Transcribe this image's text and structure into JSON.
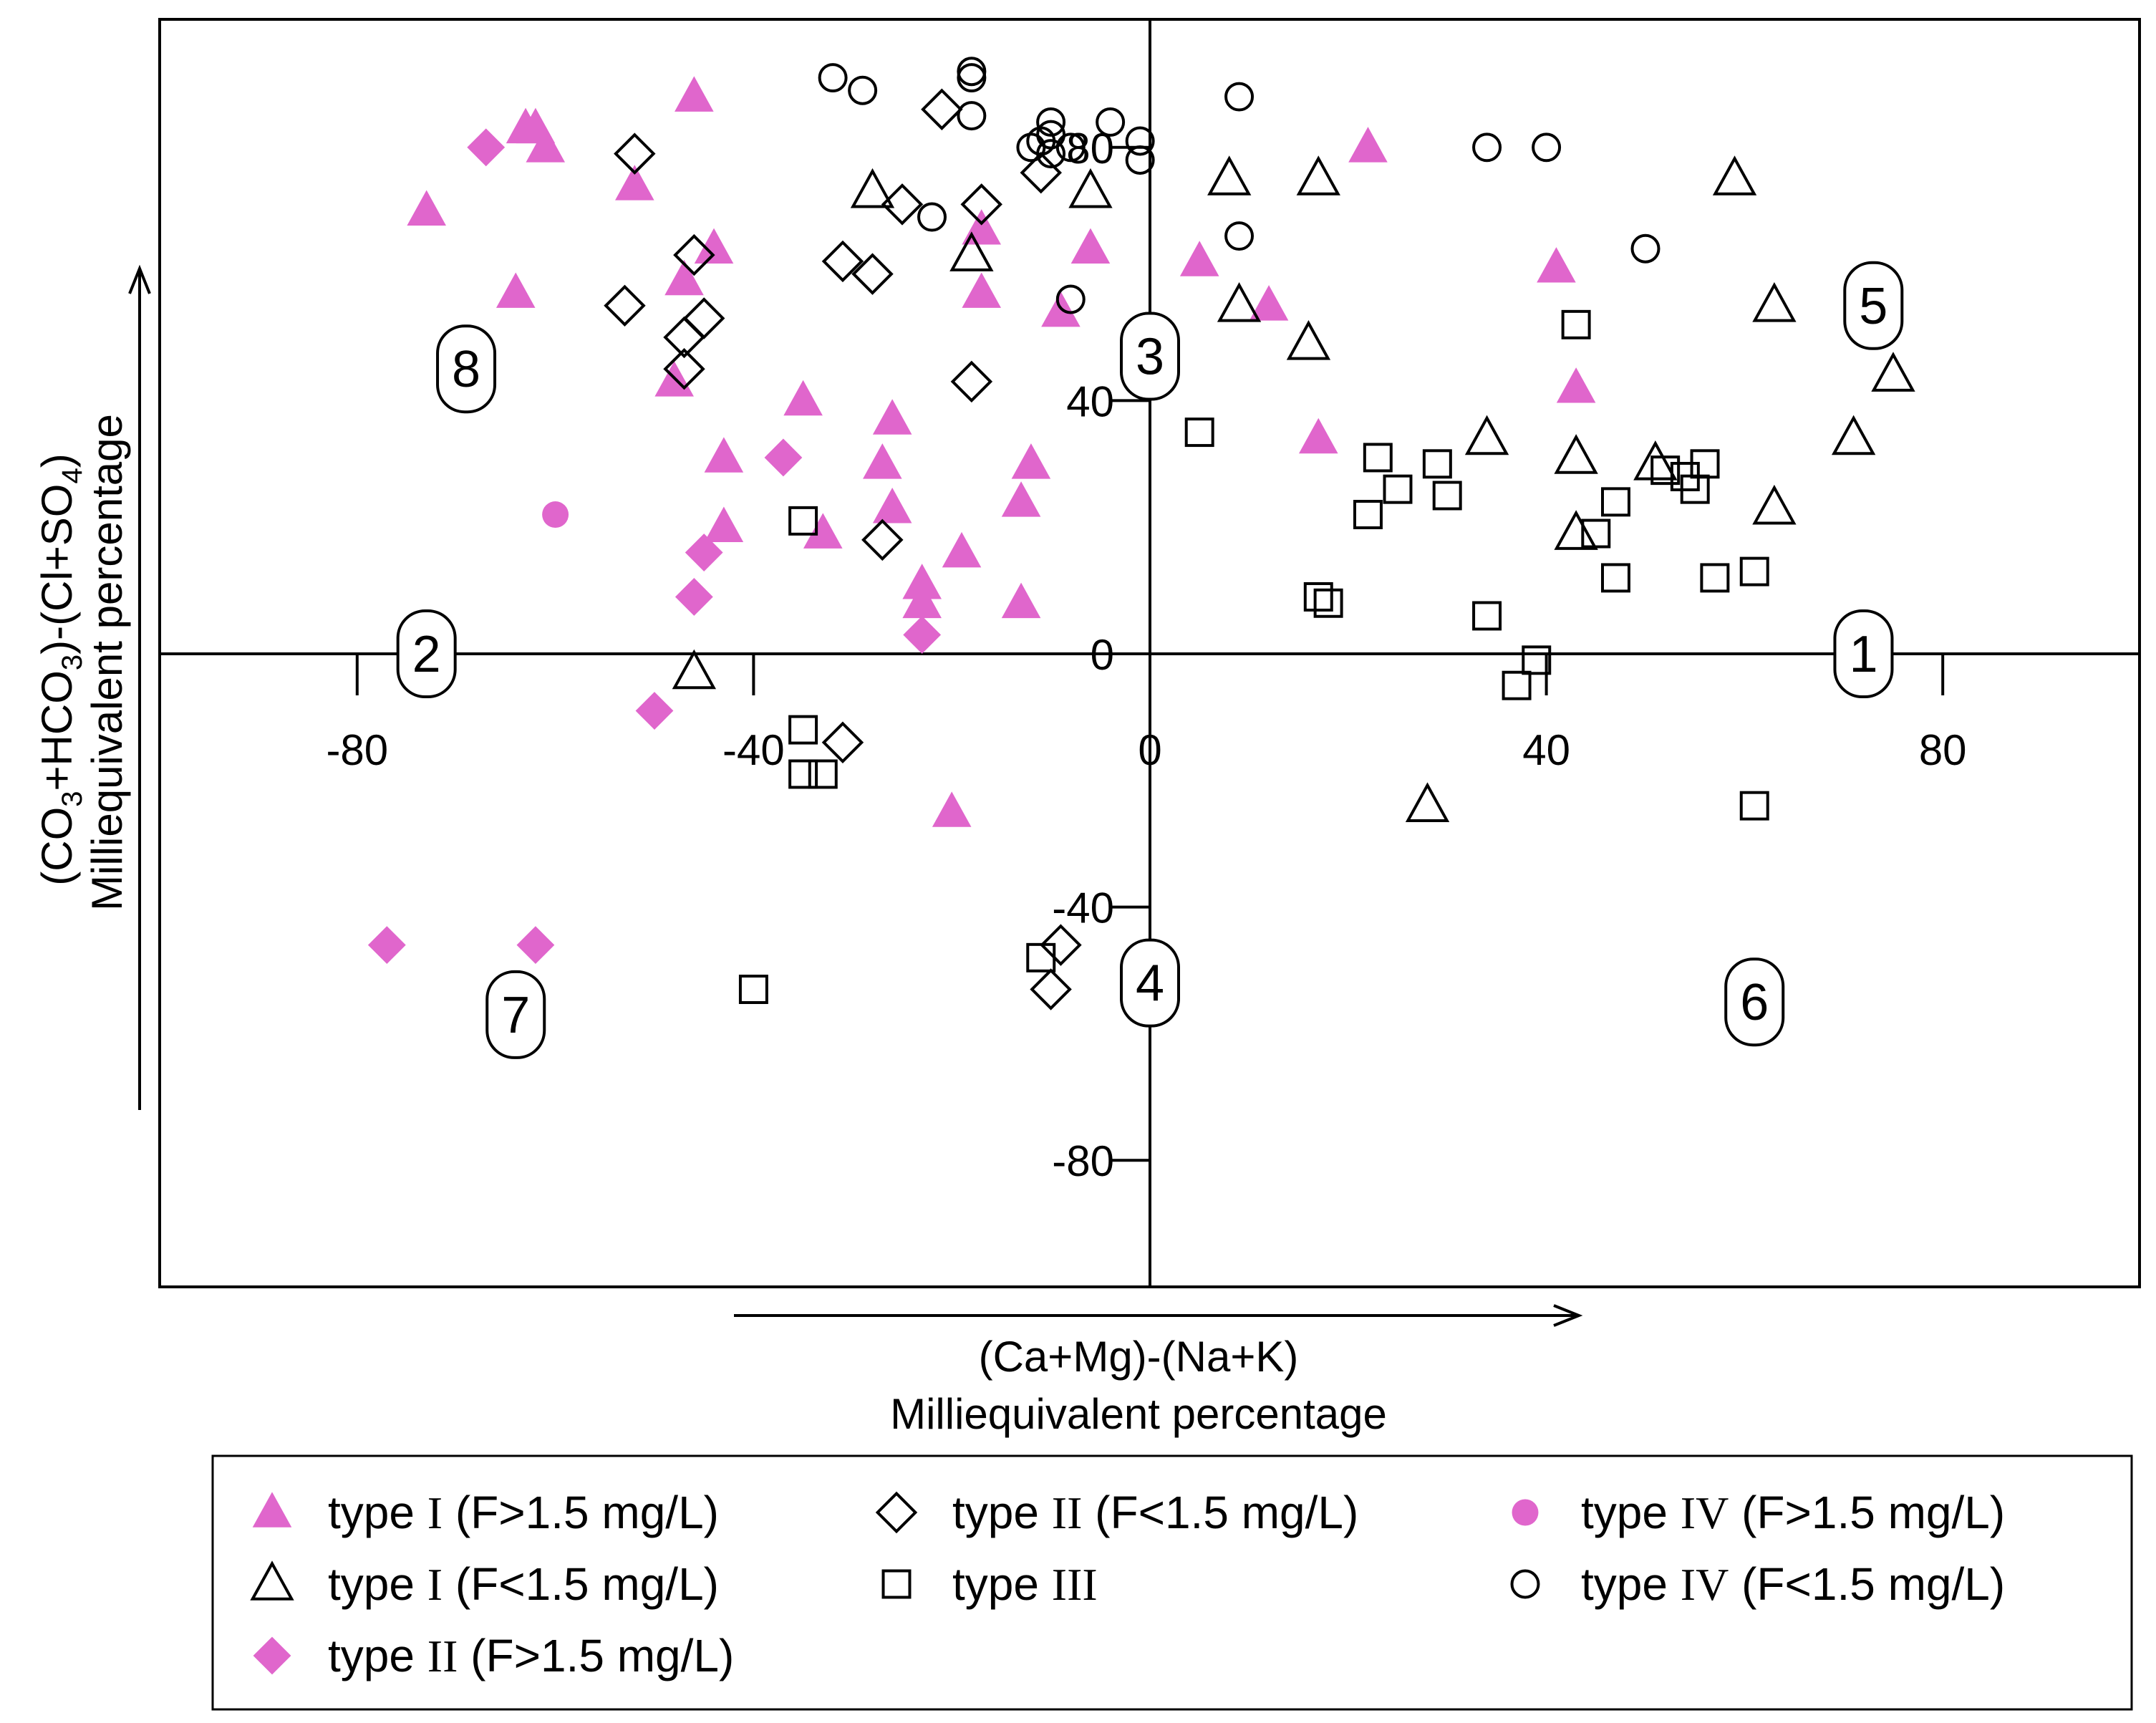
{
  "chart_data": {
    "type": "scatter",
    "xlabel": [
      "(Ca+Mg)-(Na+K)",
      "Milliequivalent percentage"
    ],
    "ylabel": [
      "(CO3+HCO3)-(Cl+SO4)",
      "Milliequivalent percentage"
    ],
    "ylabel_parts": {
      "l1a": "(CO",
      "l1b": "3",
      "l1c": "+HCO",
      "l1d": "3",
      "l1e": ")-(Cl+SO",
      "l1f": "4",
      "l1g": ")"
    },
    "xlim": [
      -100,
      100
    ],
    "ylim": [
      -100,
      100
    ],
    "x_ticks": [
      -80,
      -40,
      0,
      40,
      80
    ],
    "y_ticks": [
      -80,
      -40,
      0,
      40,
      80
    ],
    "x_tick_labels": [
      "-80",
      "-40",
      "0",
      "40",
      "80"
    ],
    "y_tick_labels": [
      "-80",
      "-40",
      "0",
      "40",
      "80"
    ],
    "fields": [
      {
        "label": "1",
        "x": 72,
        "y": 0
      },
      {
        "label": "2",
        "x": -73,
        "y": 0
      },
      {
        "label": "3",
        "x": 0,
        "y": 47
      },
      {
        "label": "4",
        "x": 0,
        "y": -52
      },
      {
        "label": "5",
        "x": 73,
        "y": 55
      },
      {
        "label": "6",
        "x": 61,
        "y": -55
      },
      {
        "label": "7",
        "x": -64,
        "y": -57
      },
      {
        "label": "8",
        "x": -69,
        "y": 45
      }
    ],
    "series": [
      {
        "name_a": "type ",
        "name_b": "I",
        "name_c": " (F>1.5 mg/L)",
        "marker": "triangle",
        "filled": true,
        "color": "#e066cc",
        "points": [
          [
            -46,
            88
          ],
          [
            -63,
            83
          ],
          [
            -62,
            83
          ],
          [
            -61,
            80
          ],
          [
            -52,
            74
          ],
          [
            -73,
            70
          ],
          [
            -44,
            64
          ],
          [
            -64,
            57
          ],
          [
            -47,
            59
          ],
          [
            -48,
            43
          ],
          [
            -35,
            40
          ],
          [
            -26,
            37
          ],
          [
            -43,
            31
          ],
          [
            -27,
            30
          ],
          [
            -12,
            30
          ],
          [
            -26,
            23
          ],
          [
            -13,
            24
          ],
          [
            -43,
            20
          ],
          [
            -33,
            19
          ],
          [
            -19,
            16
          ],
          [
            -23,
            11
          ],
          [
            -13,
            8
          ],
          [
            -23,
            8
          ],
          [
            -17,
            67
          ],
          [
            -6,
            64
          ],
          [
            -17,
            57
          ],
          [
            -9,
            54
          ],
          [
            5,
            62
          ],
          [
            12,
            55
          ],
          [
            22,
            80
          ],
          [
            41,
            61
          ],
          [
            43,
            42
          ],
          [
            17,
            34
          ],
          [
            -20,
            -25
          ]
        ]
      },
      {
        "name_a": "type ",
        "name_b": "I",
        "name_c": " (F<1.5 mg/L)",
        "marker": "triangle",
        "filled": false,
        "color": "#000000",
        "points": [
          [
            -28,
            73
          ],
          [
            -6,
            73
          ],
          [
            -18,
            63
          ],
          [
            8,
            75
          ],
          [
            17,
            75
          ],
          [
            59,
            75
          ],
          [
            9,
            55
          ],
          [
            16,
            49
          ],
          [
            63,
            55
          ],
          [
            75,
            44
          ],
          [
            34,
            34
          ],
          [
            43,
            31
          ],
          [
            71,
            34
          ],
          [
            51,
            30
          ],
          [
            63,
            23
          ],
          [
            43,
            19
          ],
          [
            -46,
            -3
          ],
          [
            28,
            -24
          ]
        ]
      },
      {
        "name_a": "type ",
        "name_b": "II",
        "name_c": " (F>1.5 mg/L)",
        "marker": "diamond",
        "filled": true,
        "color": "#e066cc",
        "points": [
          [
            -67,
            80
          ],
          [
            -37,
            31
          ],
          [
            -45,
            16
          ],
          [
            -46,
            9
          ],
          [
            -23,
            3
          ],
          [
            -50,
            -9
          ],
          [
            -77,
            -46
          ],
          [
            -62,
            -46
          ]
        ]
      },
      {
        "name_a": "type ",
        "name_b": "II",
        "name_c": " (F<1.5 mg/L)",
        "marker": "diamond",
        "filled": false,
        "color": "#000000",
        "points": [
          [
            -21,
            86
          ],
          [
            -52,
            79
          ],
          [
            -25,
            71
          ],
          [
            -17,
            71
          ],
          [
            -11,
            76
          ],
          [
            -46,
            63
          ],
          [
            -31,
            62
          ],
          [
            -28,
            60
          ],
          [
            -53,
            55
          ],
          [
            -45,
            53
          ],
          [
            -47,
            50
          ],
          [
            -47,
            45
          ],
          [
            -18,
            43
          ],
          [
            -27,
            18
          ],
          [
            -31,
            -14
          ],
          [
            -9,
            -46
          ],
          [
            -10,
            -53
          ]
        ]
      },
      {
        "name_a": "type ",
        "name_b": "III",
        "name_c": "",
        "marker": "square",
        "filled": false,
        "color": "#000000",
        "points": [
          [
            43,
            52
          ],
          [
            5,
            35
          ],
          [
            23,
            31
          ],
          [
            29,
            30
          ],
          [
            25,
            26
          ],
          [
            30,
            25
          ],
          [
            22,
            22
          ],
          [
            52,
            29
          ],
          [
            54,
            28
          ],
          [
            56,
            30
          ],
          [
            55,
            26
          ],
          [
            47,
            24
          ],
          [
            45,
            19
          ],
          [
            47,
            12
          ],
          [
            57,
            12
          ],
          [
            61,
            13
          ],
          [
            17,
            9
          ],
          [
            18,
            8
          ],
          [
            34,
            6
          ],
          [
            39,
            -1
          ],
          [
            37,
            -5
          ],
          [
            -35,
            21
          ],
          [
            -35,
            -12
          ],
          [
            -35,
            -19
          ],
          [
            -33,
            -19
          ],
          [
            61,
            -24
          ],
          [
            -11,
            -48
          ],
          [
            -40,
            -53
          ]
        ]
      },
      {
        "name_a": "type ",
        "name_b": "IV",
        "name_c": " (F>1.5 mg/L)",
        "marker": "circle",
        "filled": true,
        "color": "#e066cc",
        "points": [
          [
            -60,
            22
          ]
        ]
      },
      {
        "name_a": "type ",
        "name_b": "IV",
        "name_c": " (F<1.5 mg/L)",
        "marker": "circle",
        "filled": false,
        "color": "#000000",
        "points": [
          [
            -32,
            91
          ],
          [
            -29,
            89
          ],
          [
            -18,
            92
          ],
          [
            -18,
            91
          ],
          [
            -18,
            85
          ],
          [
            -10,
            84
          ],
          [
            -10,
            82
          ],
          [
            -11,
            81
          ],
          [
            -12,
            80
          ],
          [
            -10,
            79
          ],
          [
            -8,
            80
          ],
          [
            -4,
            84
          ],
          [
            -1,
            81
          ],
          [
            -1,
            78
          ],
          [
            9,
            88
          ],
          [
            34,
            80
          ],
          [
            40,
            80
          ],
          [
            50,
            64
          ],
          [
            9,
            66
          ],
          [
            -22,
            69
          ],
          [
            -8,
            56
          ]
        ]
      }
    ]
  }
}
